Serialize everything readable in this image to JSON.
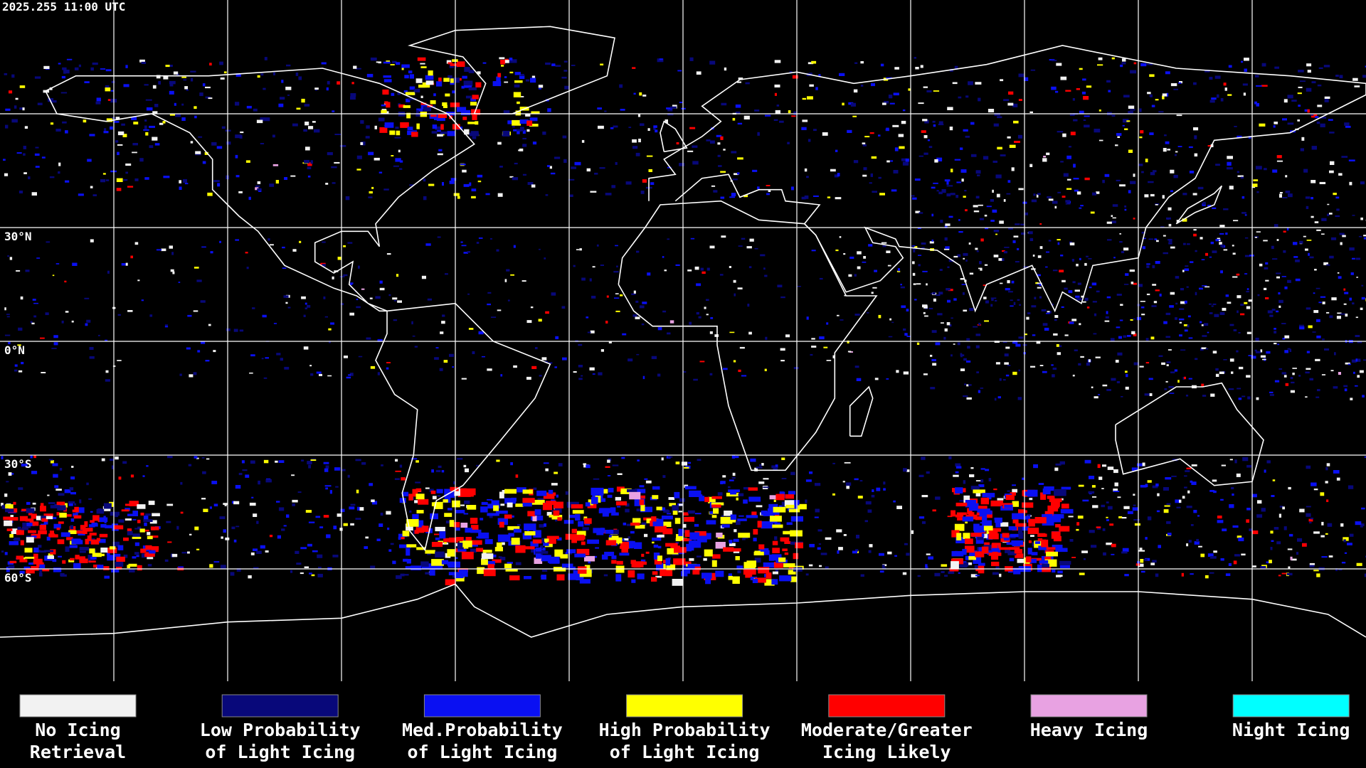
{
  "header": {
    "timestamp": "2025.255 11:00 UTC"
  },
  "map": {
    "latitude_labels": [
      "30°N",
      "0°N",
      "30°S",
      "60°S"
    ]
  },
  "legend": {
    "items": [
      {
        "label_lines": [
          "No Icing",
          "Retrieval"
        ],
        "color": "#f2f2f2"
      },
      {
        "label_lines": [
          "Low Probability",
          "of Light Icing"
        ],
        "color": "#08087a"
      },
      {
        "label_lines": [
          "Med.Probability",
          "of Light Icing"
        ],
        "color": "#0a10f2"
      },
      {
        "label_lines": [
          "High Probability",
          "of Light Icing"
        ],
        "color": "#ffff00"
      },
      {
        "label_lines": [
          "Moderate/Greater",
          "Icing Likely"
        ],
        "color": "#ff0000"
      },
      {
        "label_lines": [
          "Heavy Icing"
        ],
        "color": "#e8a2e2"
      },
      {
        "label_lines": [
          "Night Icing"
        ],
        "color": "#00ffff"
      }
    ]
  }
}
